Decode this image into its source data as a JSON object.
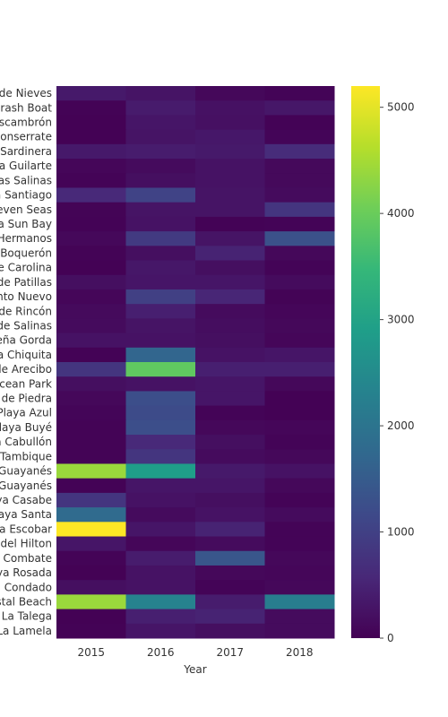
{
  "chart_data": {
    "type": "heatmap",
    "title": "",
    "xlabel": "Year",
    "ylabel": "",
    "x": [
      "2015",
      "2016",
      "2017",
      "2018"
    ],
    "y": [
      "Balneario Jobos / Playa Jobos (Área de Nieves",
      "Playa Crash Boat",
      "Balneario El Escambrón",
      "Balneario de Monserrate",
      "Playa La Sardinera",
      "Playa Guilarte",
      "Playa Las Salinas",
      "Playa Santiago",
      "Balneario Seven Seas",
      "Playa Sun Bay",
      "Balneario Tres Hermanos",
      "Playa Boquerón",
      "Balneario de Carolina",
      "Balneario de Patillas",
      "Balneario de Punto Nuevo",
      "Balneario de Rincón",
      "Balneario de Salinas",
      "Balneario de Peña Gorda",
      "Playa Chiquita",
      "Balneario de Arecibo",
      "Ocean Park",
      "Playa Caña Gorda de Piedra",
      "Playa Azul",
      "Playa Buyé",
      "Playa Cabullón",
      "Playa Tambique",
      "Balneario de Guayanés",
      "Playa de Guayanés",
      "Playa Casabe",
      "Playa Santa",
      "Playa Escobar",
      "Playa del Hilton",
      "Playa Combate",
      "Playa Rosada",
      "Playa Condado",
      "Crystal Beach",
      "Playa La Talega",
      "Playa La Lamela"
    ],
    "values": [
      [
        350,
        280,
        100,
        50
      ],
      [
        30,
        380,
        240,
        320
      ],
      [
        10,
        300,
        220,
        30
      ],
      [
        10,
        280,
        330,
        60
      ],
      [
        350,
        400,
        350,
        650
      ],
      [
        80,
        150,
        250,
        120
      ],
      [
        50,
        200,
        250,
        120
      ],
      [
        600,
        1050,
        280,
        150
      ],
      [
        40,
        280,
        280,
        800
      ],
      [
        30,
        250,
        30,
        50
      ],
      [
        100,
        900,
        280,
        1300
      ],
      [
        40,
        200,
        500,
        100
      ],
      [
        20,
        320,
        200,
        50
      ],
      [
        200,
        300,
        300,
        150
      ],
      [
        80,
        1000,
        550,
        40
      ],
      [
        130,
        450,
        150,
        80
      ],
      [
        150,
        280,
        180,
        100
      ],
      [
        250,
        250,
        200,
        80
      ],
      [
        30,
        1700,
        250,
        300
      ],
      [
        800,
        3900,
        450,
        450
      ],
      [
        200,
        250,
        300,
        100
      ],
      [
        100,
        1250,
        300,
        20
      ],
      [
        60,
        1200,
        50,
        20
      ],
      [
        40,
        1250,
        100,
        80
      ],
      [
        40,
        600,
        200,
        50
      ],
      [
        40,
        800,
        150,
        100
      ],
      [
        4400,
        2900,
        350,
        250
      ],
      [
        30,
        300,
        300,
        100
      ],
      [
        800,
        250,
        200,
        50
      ],
      [
        1800,
        150,
        250,
        150
      ],
      [
        5200,
        300,
        500,
        50
      ],
      [
        300,
        80,
        150,
        50
      ],
      [
        50,
        400,
        1400,
        100
      ],
      [
        20,
        250,
        100,
        80
      ],
      [
        200,
        250,
        50,
        100
      ],
      [
        4400,
        2300,
        400,
        2200
      ],
      [
        20,
        450,
        500,
        150
      ],
      [
        30,
        300,
        200,
        150
      ]
    ],
    "colorbar": {
      "colorscale": "Viridis",
      "range": [
        0,
        5200
      ],
      "ticks": [
        0,
        1000,
        2000,
        3000,
        4000,
        5000
      ]
    }
  }
}
